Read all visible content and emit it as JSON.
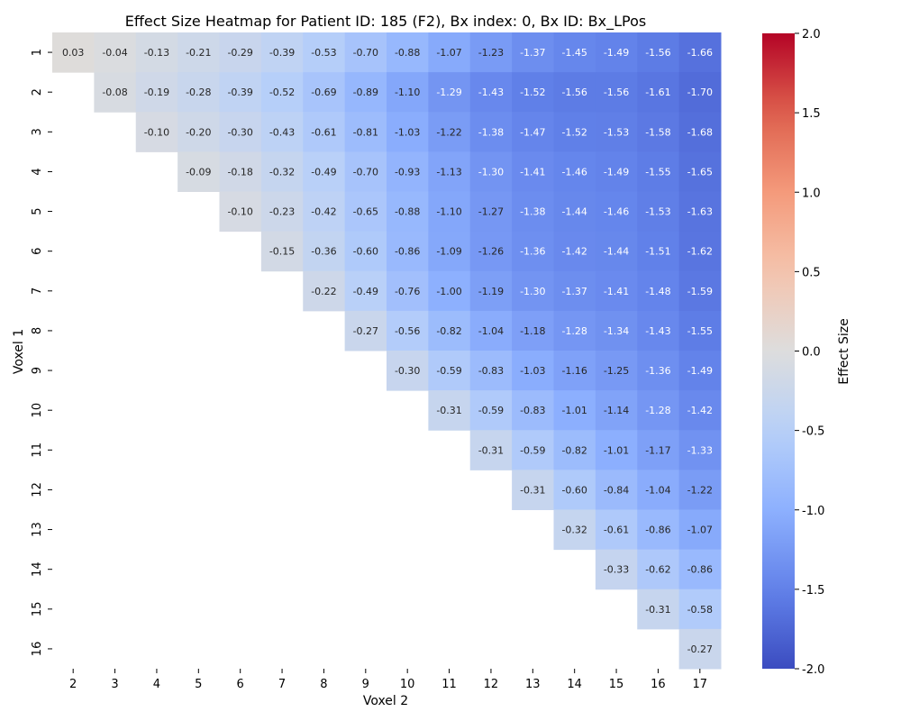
{
  "chart_data": {
    "type": "heatmap",
    "title": "Effect Size Heatmap for Patient ID: 185 (F2), Bx index: 0, Bx ID: Bx_LPos",
    "xlabel": "Voxel 2",
    "ylabel": "Voxel 1",
    "colorbar_label": "Effect Size",
    "x_categories": [
      "2",
      "3",
      "4",
      "5",
      "6",
      "7",
      "8",
      "9",
      "10",
      "11",
      "12",
      "13",
      "14",
      "15",
      "16",
      "17"
    ],
    "y_categories": [
      "1",
      "2",
      "3",
      "4",
      "5",
      "6",
      "7",
      "8",
      "9",
      "10",
      "11",
      "12",
      "13",
      "14",
      "15",
      "16"
    ],
    "vmin": -2.0,
    "vmax": 2.0,
    "colormap": "coolwarm",
    "colorbar_ticks": [
      "-2.0",
      "-1.5",
      "-1.0",
      "-0.5",
      "0.0",
      "0.5",
      "1.0",
      "1.5",
      "2.0"
    ],
    "values": [
      [
        0.03,
        -0.04,
        -0.13,
        -0.21,
        -0.29,
        -0.39,
        -0.53,
        -0.7,
        -0.88,
        -1.07,
        -1.23,
        -1.37,
        -1.45,
        -1.49,
        -1.56,
        -1.66
      ],
      [
        null,
        -0.08,
        -0.19,
        -0.28,
        -0.39,
        -0.52,
        -0.69,
        -0.89,
        -1.1,
        -1.29,
        -1.43,
        -1.52,
        -1.56,
        -1.56,
        -1.61,
        -1.7
      ],
      [
        null,
        null,
        -0.1,
        -0.2,
        -0.3,
        -0.43,
        -0.61,
        -0.81,
        -1.03,
        -1.22,
        -1.38,
        -1.47,
        -1.52,
        -1.53,
        -1.58,
        -1.68
      ],
      [
        null,
        null,
        null,
        -0.09,
        -0.18,
        -0.32,
        -0.49,
        -0.7,
        -0.93,
        -1.13,
        -1.3,
        -1.41,
        -1.46,
        -1.49,
        -1.55,
        -1.65
      ],
      [
        null,
        null,
        null,
        null,
        -0.1,
        -0.23,
        -0.42,
        -0.65,
        -0.88,
        -1.1,
        -1.27,
        -1.38,
        -1.44,
        -1.46,
        -1.53,
        -1.63
      ],
      [
        null,
        null,
        null,
        null,
        null,
        -0.15,
        -0.36,
        -0.6,
        -0.86,
        -1.09,
        -1.26,
        -1.36,
        -1.42,
        -1.44,
        -1.51,
        -1.62
      ],
      [
        null,
        null,
        null,
        null,
        null,
        null,
        -0.22,
        -0.49,
        -0.76,
        -1.0,
        -1.19,
        -1.3,
        -1.37,
        -1.41,
        -1.48,
        -1.59
      ],
      [
        null,
        null,
        null,
        null,
        null,
        null,
        null,
        -0.27,
        -0.56,
        -0.82,
        -1.04,
        -1.18,
        -1.28,
        -1.34,
        -1.43,
        -1.55
      ],
      [
        null,
        null,
        null,
        null,
        null,
        null,
        null,
        null,
        -0.3,
        -0.59,
        -0.83,
        -1.03,
        -1.16,
        -1.25,
        -1.36,
        -1.49
      ],
      [
        null,
        null,
        null,
        null,
        null,
        null,
        null,
        null,
        null,
        -0.31,
        -0.59,
        -0.83,
        -1.01,
        -1.14,
        -1.28,
        -1.42
      ],
      [
        null,
        null,
        null,
        null,
        null,
        null,
        null,
        null,
        null,
        null,
        -0.31,
        -0.59,
        -0.82,
        -1.01,
        -1.17,
        -1.33
      ],
      [
        null,
        null,
        null,
        null,
        null,
        null,
        null,
        null,
        null,
        null,
        null,
        -0.31,
        -0.6,
        -0.84,
        -1.04,
        -1.22
      ],
      [
        null,
        null,
        null,
        null,
        null,
        null,
        null,
        null,
        null,
        null,
        null,
        null,
        -0.32,
        -0.61,
        -0.86,
        -1.07
      ],
      [
        null,
        null,
        null,
        null,
        null,
        null,
        null,
        null,
        null,
        null,
        null,
        null,
        null,
        -0.33,
        -0.62,
        -0.86
      ],
      [
        null,
        null,
        null,
        null,
        null,
        null,
        null,
        null,
        null,
        null,
        null,
        null,
        null,
        null,
        -0.31,
        -0.58
      ],
      [
        null,
        null,
        null,
        null,
        null,
        null,
        null,
        null,
        null,
        null,
        null,
        null,
        null,
        null,
        null,
        -0.27
      ]
    ]
  }
}
